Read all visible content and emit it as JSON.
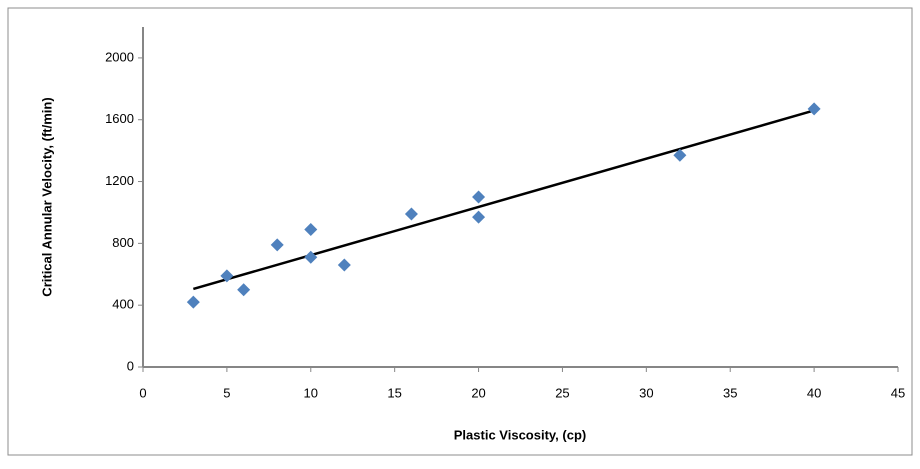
{
  "chart_data": {
    "type": "scatter",
    "x_label": "Plastic Viscosity, (cp)",
    "y_label": "Critical Annular Velocity, (ft/min)",
    "xlim": [
      0,
      45
    ],
    "ylim": [
      0,
      2200
    ],
    "xticks": [
      0,
      5,
      10,
      15,
      20,
      25,
      30,
      35,
      40,
      45
    ],
    "yticks": [
      0,
      400,
      800,
      1200,
      1600,
      2000
    ],
    "grid": false,
    "series": [
      {
        "x": [
          3,
          5,
          6,
          8,
          10,
          10,
          12,
          16,
          20,
          20,
          32,
          40
        ],
        "values": [
          420,
          590,
          500,
          790,
          890,
          710,
          660,
          990,
          1100,
          970,
          1370,
          1670
        ],
        "color": "#4f81bd"
      }
    ],
    "trendline": {
      "x": [
        3,
        40
      ],
      "values": [
        505,
        1660
      ],
      "color": "#000000"
    }
  }
}
